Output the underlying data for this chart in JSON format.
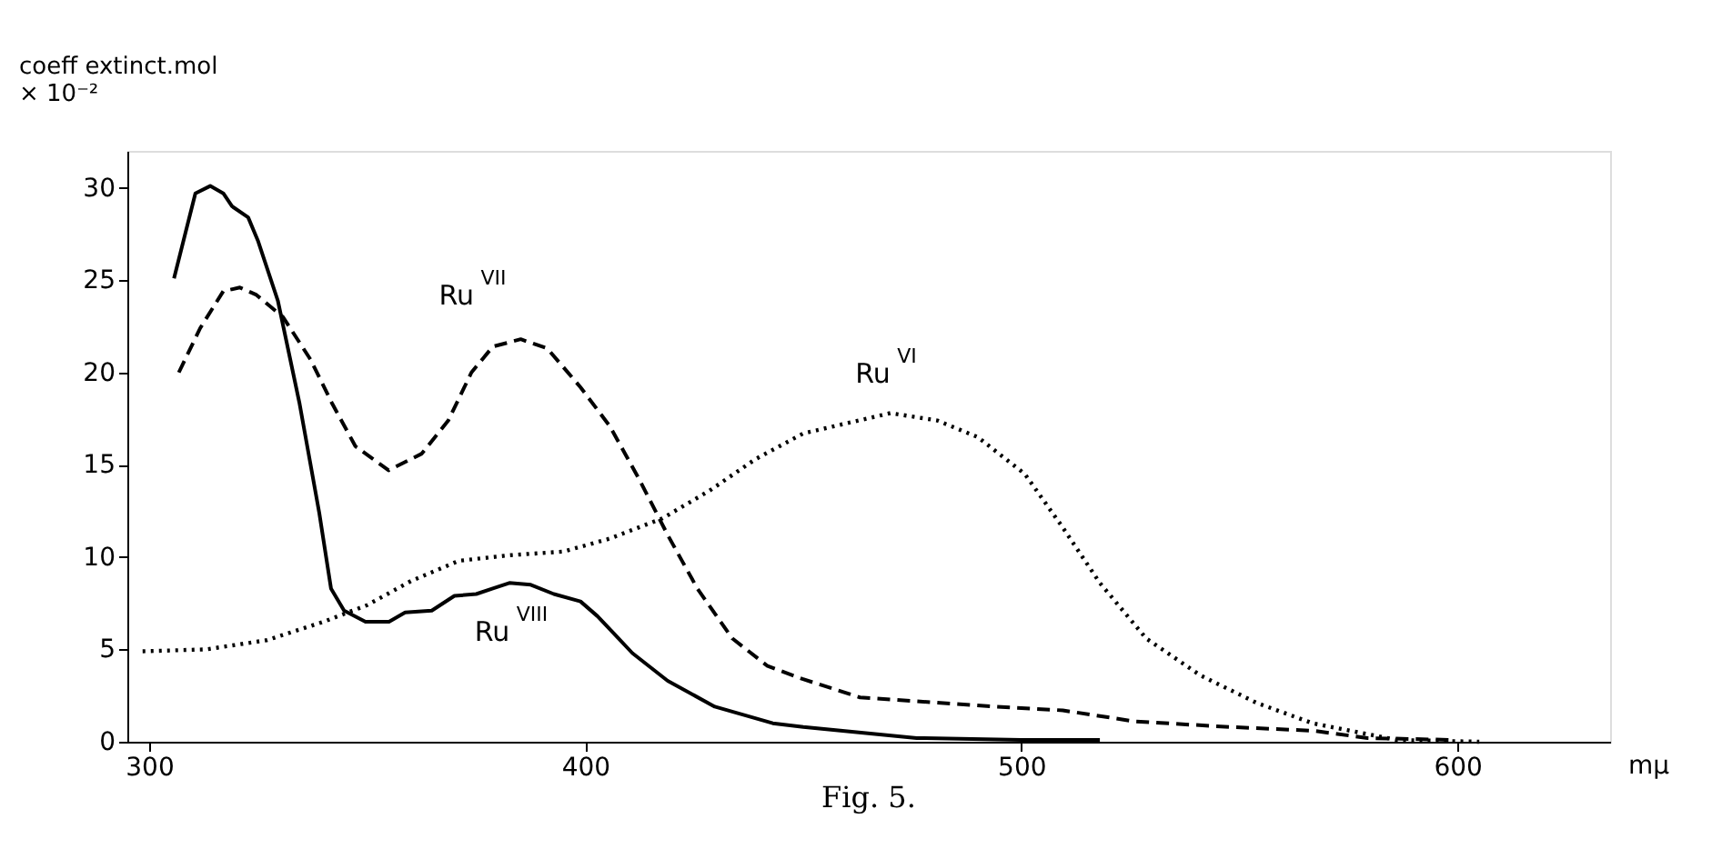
{
  "chart_data": {
    "type": "line",
    "xlabel": "mμ",
    "ylabel": "coeff extinct.mol\n× 10⁻²",
    "xlim": [
      295,
      635
    ],
    "xticks": [
      300,
      400,
      500,
      600
    ],
    "ylim": [
      0,
      32
    ],
    "yticks": [
      0,
      5,
      10,
      15,
      20,
      25,
      30
    ],
    "grid": false,
    "marker": "none",
    "series": [
      {
        "name": "Ru$^{VIII}$",
        "color": "#000000",
        "line_style": "solid",
        "x": [
          305.7,
          310.6,
          314,
          317,
          319,
          322.7,
          325,
          329.5,
          334.5,
          339,
          341.7,
          344.7,
          349.6,
          355,
          358.7,
          364.8,
          370,
          375,
          378.8,
          382.6,
          387.5,
          392.8,
          398.9,
          402.8,
          406.8,
          410.8,
          418.9,
          429.7,
          443,
          450,
          476,
          500,
          518
        ],
        "values": [
          25.1,
          29.7,
          30.1,
          29.7,
          29.0,
          28.4,
          27.1,
          23.9,
          18.3,
          12.4,
          8.3,
          7.1,
          6.5,
          6.5,
          7.0,
          7.1,
          7.9,
          8.0,
          8.3,
          8.6,
          8.5,
          8.0,
          7.6,
          6.8,
          5.8,
          4.8,
          3.3,
          1.9,
          1.0,
          0.8,
          0.2,
          0.1,
          0.1
        ]
      },
      {
        "name": "Ru$^{VII}$",
        "color": "#000000",
        "line_style": "dashed",
        "x": [
          306.8,
          311.7,
          317,
          320.8,
          324.6,
          330.7,
          337,
          342,
          347.3,
          354.9,
          362.5,
          368.6,
          373.9,
          378.8,
          385.2,
          391.3,
          398.9,
          405.6,
          412.4,
          418.9,
          425.7,
          433.7,
          441.8,
          449.8,
          463,
          494,
          509.5,
          526,
          547.7,
          566.8,
          579.4,
          598.5
        ],
        "values": [
          20.0,
          22.4,
          24.4,
          24.6,
          24.2,
          23.0,
          20.7,
          18.3,
          16.0,
          14.7,
          15.6,
          17.4,
          20.0,
          21.4,
          21.8,
          21.3,
          19.2,
          17.1,
          14.2,
          11.2,
          8.3,
          5.6,
          4.1,
          3.4,
          2.4,
          1.9,
          1.7,
          1.1,
          0.8,
          0.6,
          0.2,
          0.1
        ]
      },
      {
        "name": "Ru$^{VI}$",
        "color": "#000000",
        "line_style": "dotted",
        "x": [
          298.5,
          313,
          327,
          340,
          350,
          360,
          371,
          382.6,
          395,
          405.6,
          417.7,
          428.5,
          439,
          450,
          470,
          480.7,
          490,
          500.8,
          509.5,
          518,
          528.6,
          541,
          554,
          566.8,
          586,
          605
        ],
        "values": [
          4.9,
          5.0,
          5.5,
          6.5,
          7.4,
          8.7,
          9.8,
          10.1,
          10.3,
          11.0,
          12.1,
          13.6,
          15.3,
          16.7,
          17.8,
          17.4,
          16.5,
          14.5,
          11.6,
          8.6,
          5.6,
          3.6,
          2.1,
          1.0,
          0.1,
          0.0
        ]
      }
    ],
    "annotations": [
      "Fig. 5."
    ]
  }
}
